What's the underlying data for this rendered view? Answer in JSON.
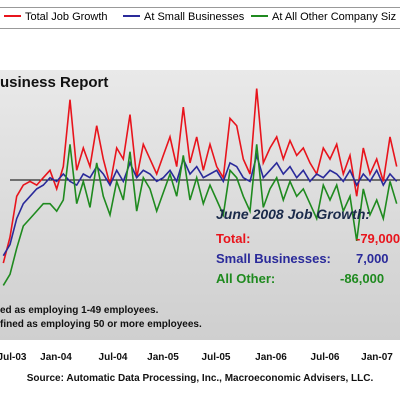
{
  "legend": {
    "items": [
      {
        "label": "Total Job Growth",
        "color": "#e8141c"
      },
      {
        "label": "At Small Businesses",
        "color": "#2a2a9a"
      },
      {
        "label": "At All Other Company Siz",
        "color": "#1f8a1f"
      }
    ]
  },
  "report_title": "usiness Report",
  "summary": {
    "title": "June 2008 Job Growth:",
    "rows": [
      {
        "label": "Total:",
        "value": "-79,000",
        "color": "#e8141c"
      },
      {
        "label": "Small Businesses:",
        "value": "7,000",
        "color": "#2a2a9a"
      },
      {
        "label": "All Other:",
        "value": "-86,000",
        "color": "#1f8a1f"
      }
    ]
  },
  "footnotes": [
    "ed as employing 1-49 employees.",
    "fined as employing 50 or more employees."
  ],
  "source": "Source: Automatic Data Processing, Inc., Macroeconomic Advisers, LLC.",
  "chart_data": {
    "type": "line",
    "x_ticks": [
      "Jul-03",
      "Jan-04",
      "Jul-04",
      "Jan-05",
      "Jul-05",
      "Jan-06",
      "Jul-06",
      "Jan-07"
    ],
    "x_range": [
      "2003-05",
      "2007-08"
    ],
    "y_range": [
      -1.0,
      6.0
    ],
    "grid": false,
    "legend_position": "top",
    "series": [
      {
        "name": "Total Job Growth",
        "color": "#e8141c",
        "values": [
          0.8,
          1.5,
          2.6,
          2.9,
          3.0,
          2.9,
          3.1,
          3.3,
          2.8,
          3.4,
          5.2,
          3.3,
          3.9,
          3.4,
          4.5,
          3.6,
          2.9,
          3.9,
          3.6,
          4.8,
          3.1,
          4.0,
          3.6,
          3.2,
          3.7,
          4.2,
          3.4,
          5.0,
          3.5,
          4.2,
          3.3,
          4.0,
          3.4,
          3.1,
          4.7,
          4.5,
          3.6,
          3.2,
          5.5,
          3.5,
          3.9,
          4.2,
          3.6,
          4.1,
          3.7,
          3.9,
          3.5,
          3.2,
          3.9,
          3.6,
          4.0,
          3.2,
          3.7,
          2.6,
          3.9,
          3.2,
          3.6,
          3.0,
          4.2,
          3.4
        ]
      },
      {
        "name": "At Small Businesses",
        "color": "#2a2a9a",
        "values": [
          1.0,
          1.3,
          2.0,
          2.4,
          2.6,
          2.8,
          2.9,
          3.1,
          3.0,
          3.2,
          3.0,
          2.9,
          3.2,
          3.1,
          3.4,
          3.2,
          2.9,
          3.3,
          3.0,
          3.5,
          3.1,
          3.3,
          3.2,
          3.0,
          3.1,
          3.3,
          3.0,
          3.6,
          3.2,
          3.4,
          3.1,
          3.2,
          3.3,
          3.0,
          3.5,
          3.4,
          3.1,
          3.0,
          3.7,
          3.1,
          3.3,
          3.5,
          3.2,
          3.4,
          3.1,
          3.3,
          3.0,
          3.2,
          3.1,
          3.3,
          3.2,
          3.0,
          3.3,
          2.9,
          3.2,
          3.0,
          3.3,
          2.9,
          3.2,
          3.0
        ]
      },
      {
        "name": "At All Other Company Siz",
        "color": "#1f8a1f",
        "values": [
          0.2,
          0.5,
          1.2,
          1.8,
          2.0,
          2.2,
          2.4,
          2.4,
          2.2,
          2.5,
          4.0,
          2.4,
          3.0,
          2.3,
          3.5,
          2.6,
          2.1,
          3.0,
          2.5,
          3.8,
          2.2,
          3.1,
          2.8,
          2.2,
          2.7,
          3.2,
          2.6,
          3.7,
          2.5,
          3.1,
          2.4,
          2.9,
          2.5,
          2.1,
          3.3,
          3.1,
          2.6,
          2.2,
          4.0,
          2.3,
          2.8,
          3.1,
          2.5,
          3.0,
          2.6,
          2.8,
          2.4,
          2.0,
          2.9,
          2.5,
          2.9,
          2.2,
          2.6,
          1.4,
          2.8,
          2.1,
          2.5,
          2.0,
          3.0,
          2.4
        ]
      }
    ]
  }
}
